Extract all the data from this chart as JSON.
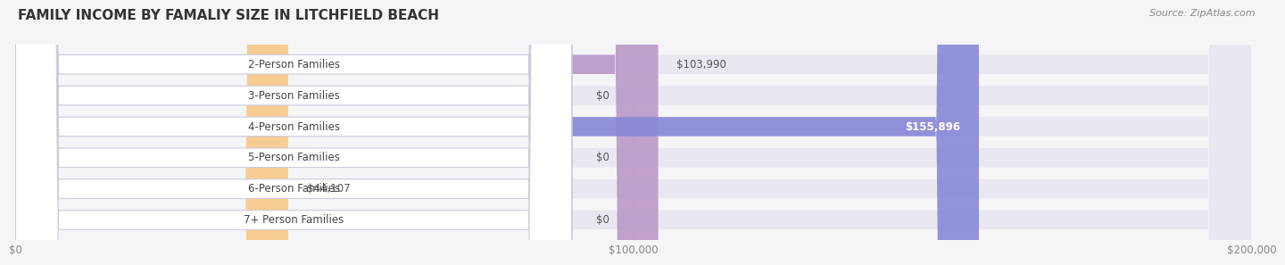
{
  "title": "FAMILY INCOME BY FAMALIY SIZE IN LITCHFIELD BEACH",
  "source": "Source: ZipAtlas.com",
  "categories": [
    "2-Person Families",
    "3-Person Families",
    "4-Person Families",
    "5-Person Families",
    "6-Person Families",
    "7+ Person Families"
  ],
  "values": [
    103990,
    0,
    155896,
    0,
    44107,
    0
  ],
  "bar_colors": [
    "#b998c8",
    "#6dcdc8",
    "#8888d8",
    "#f899b8",
    "#f8c888",
    "#f89898"
  ],
  "value_labels": [
    "$103,990",
    "$0",
    "$155,896",
    "$0",
    "$44,107",
    "$0"
  ],
  "xlim": [
    0,
    200000
  ],
  "xticks": [
    0,
    100000,
    200000
  ],
  "xticklabels": [
    "$0",
    "$100,000",
    "$200,000"
  ],
  "bg_color": "#f5f5f8",
  "bar_bg_color": "#e8e8f0",
  "title_fontsize": 11,
  "source_fontsize": 8,
  "label_fontsize": 8.5,
  "value_fontsize": 8.5
}
